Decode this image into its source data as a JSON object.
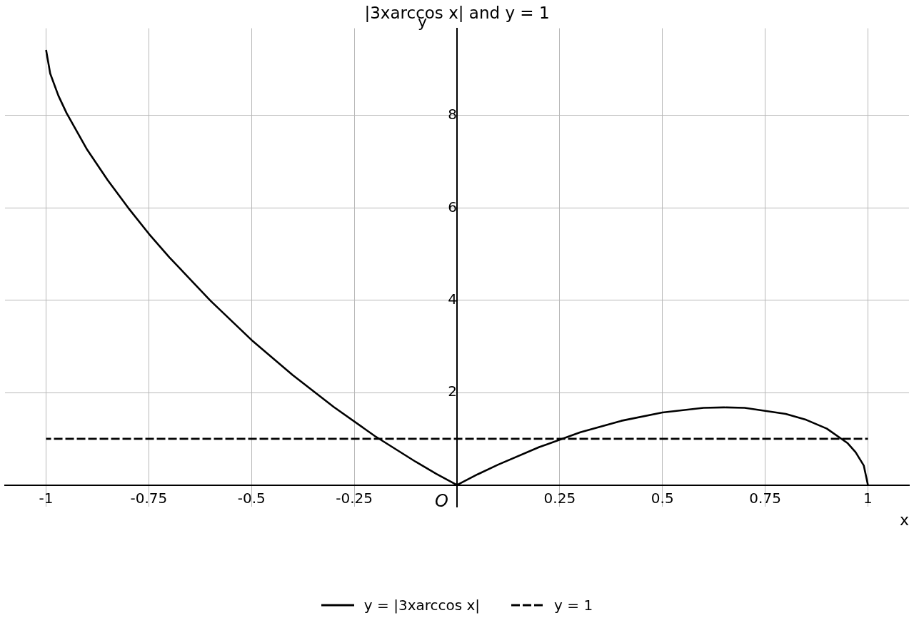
{
  "chart_data": {
    "type": "line",
    "title": "|3xarccos x| and y = 1",
    "xlabel": "x",
    "ylabel": "y",
    "xlim": [
      -1.1,
      1.1
    ],
    "ylim": [
      -0.47,
      9.89
    ],
    "xticks": [
      -1,
      -0.75,
      -0.5,
      -0.25,
      0.25,
      0.5,
      0.75,
      1
    ],
    "yticks": [
      2,
      4,
      6,
      8
    ],
    "grid": true,
    "legend": "bottom",
    "marker": "none",
    "annotations": [
      {
        "text": "O",
        "x": 0,
        "y": 0
      }
    ],
    "series": [
      {
        "name": "y = |3xarccos x|",
        "color": "#000000",
        "line_style": "solid",
        "x": [
          -1,
          -0.99,
          -0.97,
          -0.95,
          -0.9,
          -0.85,
          -0.8,
          -0.75,
          -0.7,
          -0.6,
          -0.5,
          -0.4,
          -0.3,
          -0.2,
          -0.1,
          -0.05,
          0,
          0.05,
          0.1,
          0.2,
          0.3,
          0.4,
          0.5,
          0.6,
          0.65,
          0.7,
          0.8,
          0.85,
          0.9,
          0.95,
          0.97,
          0.99,
          1
        ],
        "values": [
          9.42,
          8.91,
          8.43,
          8.05,
          7.26,
          6.6,
          6.0,
          5.44,
          4.93,
          3.99,
          3.14,
          2.38,
          1.69,
          1.06,
          0.5,
          0.24,
          0,
          0.23,
          0.44,
          0.82,
          1.14,
          1.39,
          1.57,
          1.67,
          1.68,
          1.67,
          1.54,
          1.41,
          1.22,
          0.91,
          0.71,
          0.42,
          0
        ]
      },
      {
        "name": "y = 1",
        "color": "#000000",
        "line_style": "dashed",
        "x": [
          -1,
          1
        ],
        "values": [
          1,
          1
        ]
      }
    ]
  }
}
